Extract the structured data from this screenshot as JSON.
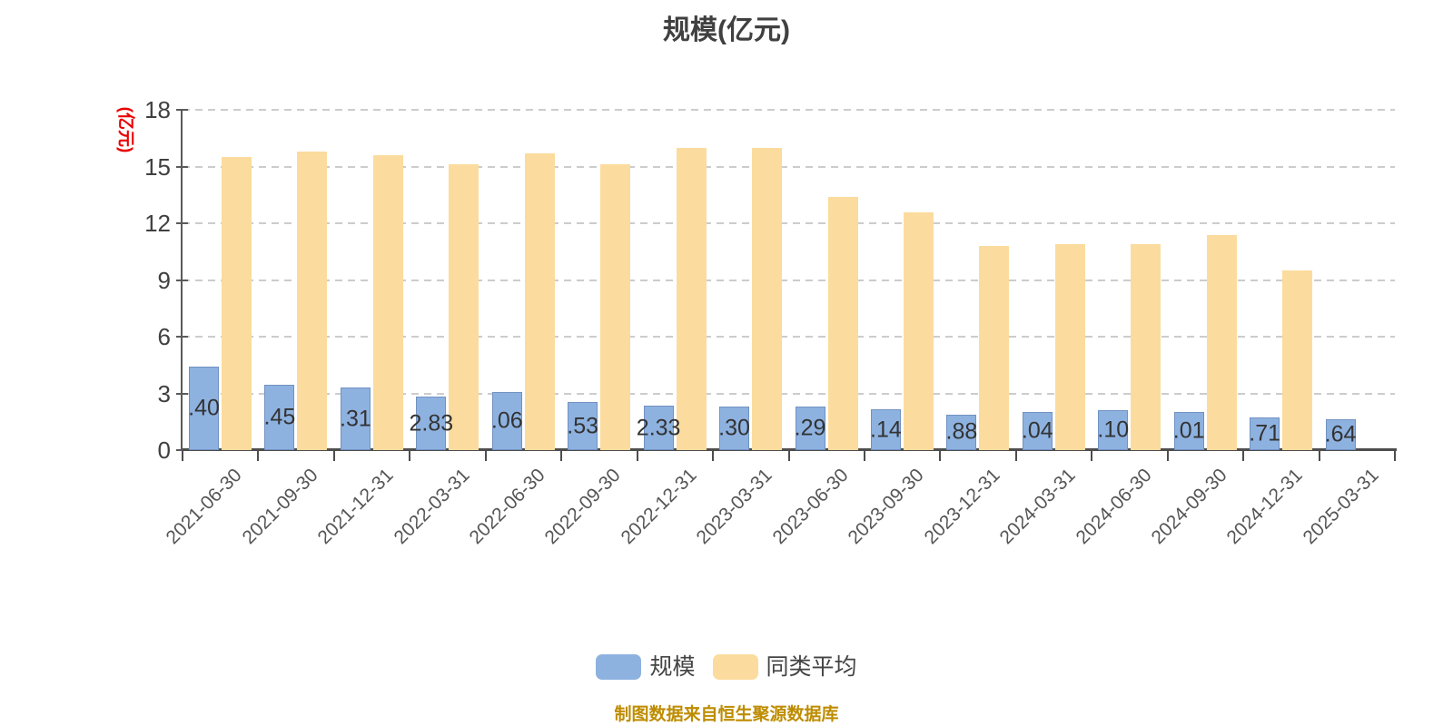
{
  "title": "规模(亿元)",
  "y_axis": {
    "unit_label": "(亿元)",
    "unit_color": "#e80000",
    "ticks": [
      0,
      3,
      6,
      9,
      12,
      15,
      18
    ]
  },
  "legend": {
    "scale_label": "规模",
    "average_label": "同类平均"
  },
  "footer": {
    "text": "制图数据来自恒生聚源数据库",
    "color": "#be8c00"
  },
  "colors": {
    "scale_bar": "#8eb2e0",
    "scale_bar_border": "#7191c1",
    "average_bar": "#fbdc9e",
    "grid": "#cccccc",
    "axis": "#555555",
    "bar_label": "#333333",
    "x_label": "#555555",
    "y_label": "#404040"
  },
  "chart_data": {
    "type": "bar",
    "title": "规模(亿元)",
    "ylabel": "(亿元)",
    "ylim": [
      0,
      18
    ],
    "y_ticks": [
      0,
      3,
      6,
      9,
      12,
      15,
      18
    ],
    "grid": "dashed-horizontal",
    "legend_position": "bottom",
    "categories": [
      "2021-06-30",
      "2021-09-30",
      "2021-12-31",
      "2022-03-31",
      "2022-06-30",
      "2022-09-30",
      "2022-12-31",
      "2023-03-31",
      "2023-06-30",
      "2023-09-30",
      "2023-12-31",
      "2024-03-31",
      "2024-06-30",
      "2024-09-30",
      "2024-12-31",
      "2025-03-31"
    ],
    "series": [
      {
        "name": "规模",
        "color": "#8eb2e0",
        "values": [
          4.4,
          3.45,
          3.31,
          2.83,
          3.06,
          2.53,
          2.33,
          2.3,
          2.29,
          2.14,
          1.88,
          2.04,
          2.1,
          2.01,
          1.71,
          1.64
        ],
        "bar_labels_visible": [
          ".40",
          ".45",
          ".31",
          "2.83",
          ".06",
          ".53",
          "2.33",
          ".30",
          ".29",
          ".14",
          ".88",
          ".04",
          ".10",
          ".01",
          ".71",
          ".64"
        ]
      },
      {
        "name": "同类平均",
        "color": "#fbdc9e",
        "values": [
          15.5,
          15.8,
          15.6,
          15.1,
          15.7,
          15.1,
          16.0,
          16.0,
          13.4,
          12.6,
          10.8,
          10.9,
          10.9,
          11.4,
          9.5,
          null
        ]
      }
    ],
    "note": "制图数据来自恒生聚源数据库"
  }
}
